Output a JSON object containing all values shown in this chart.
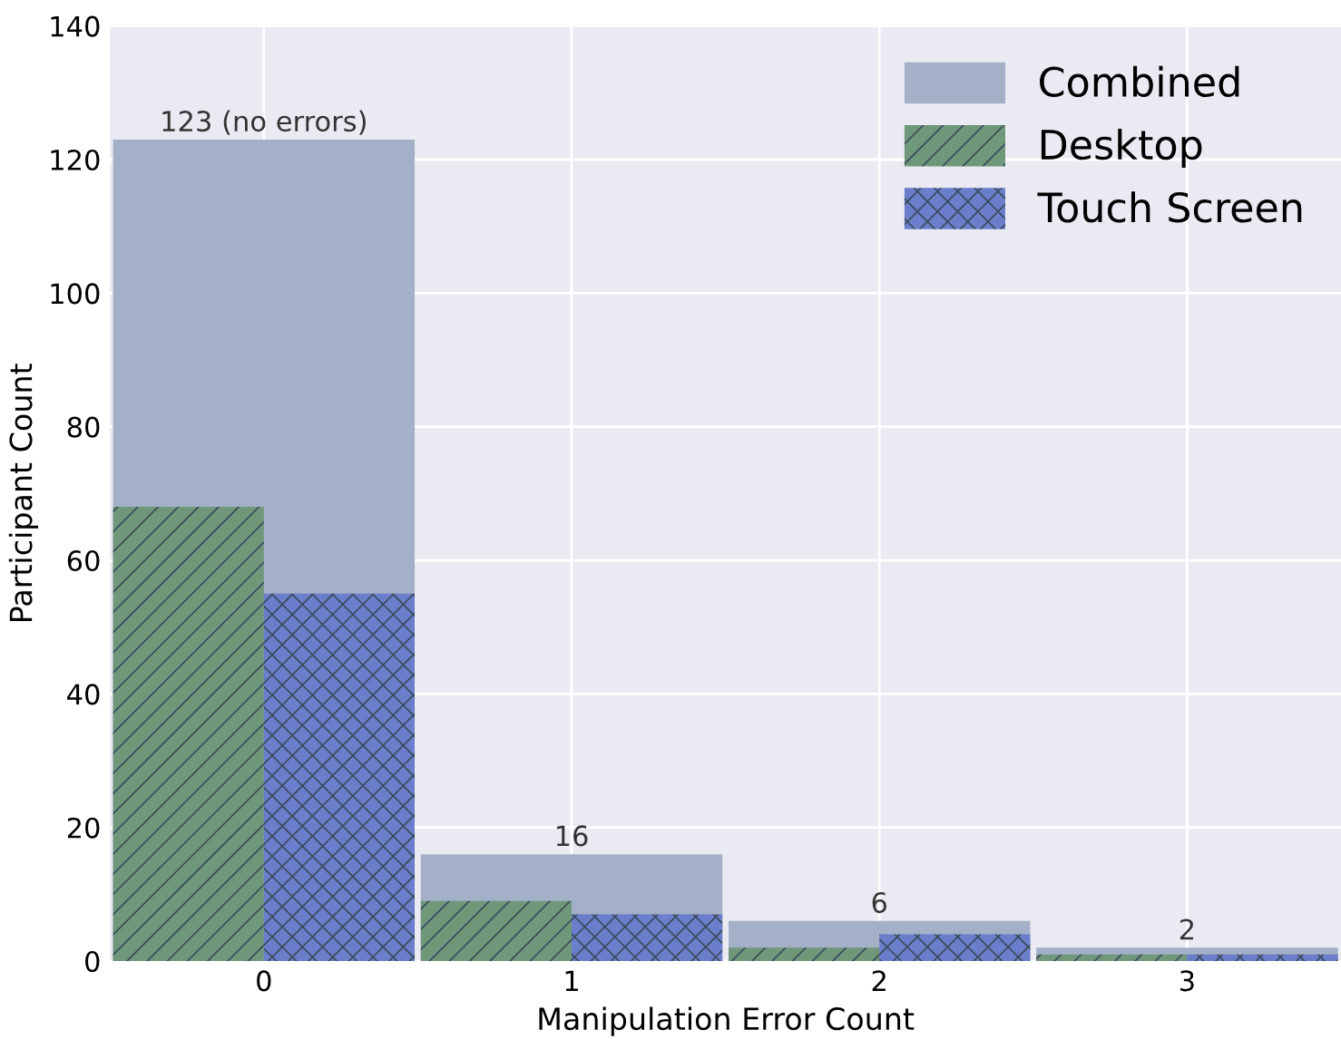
{
  "chart_data": {
    "type": "bar",
    "xlabel": "Manipulation Error Count",
    "ylabel": "Participant Count",
    "categories": [
      "0",
      "1",
      "2",
      "3"
    ],
    "series": [
      {
        "name": "Combined",
        "color": "#a3b0c8",
        "values": [
          123,
          16,
          6,
          2
        ],
        "value_labels": [
          "123 (no errors)",
          "16",
          "6",
          "2"
        ]
      },
      {
        "name": "Desktop",
        "color": "#6f977a",
        "values": [
          68,
          9,
          2,
          1
        ]
      },
      {
        "name": "Touch Screen",
        "color": "#6a7ecb",
        "values": [
          55,
          7,
          4,
          1
        ]
      }
    ],
    "ylim": [
      0,
      140
    ],
    "yticks": [
      0,
      20,
      40,
      60,
      80,
      100,
      120,
      140
    ],
    "grid": true,
    "legend": "top right"
  }
}
